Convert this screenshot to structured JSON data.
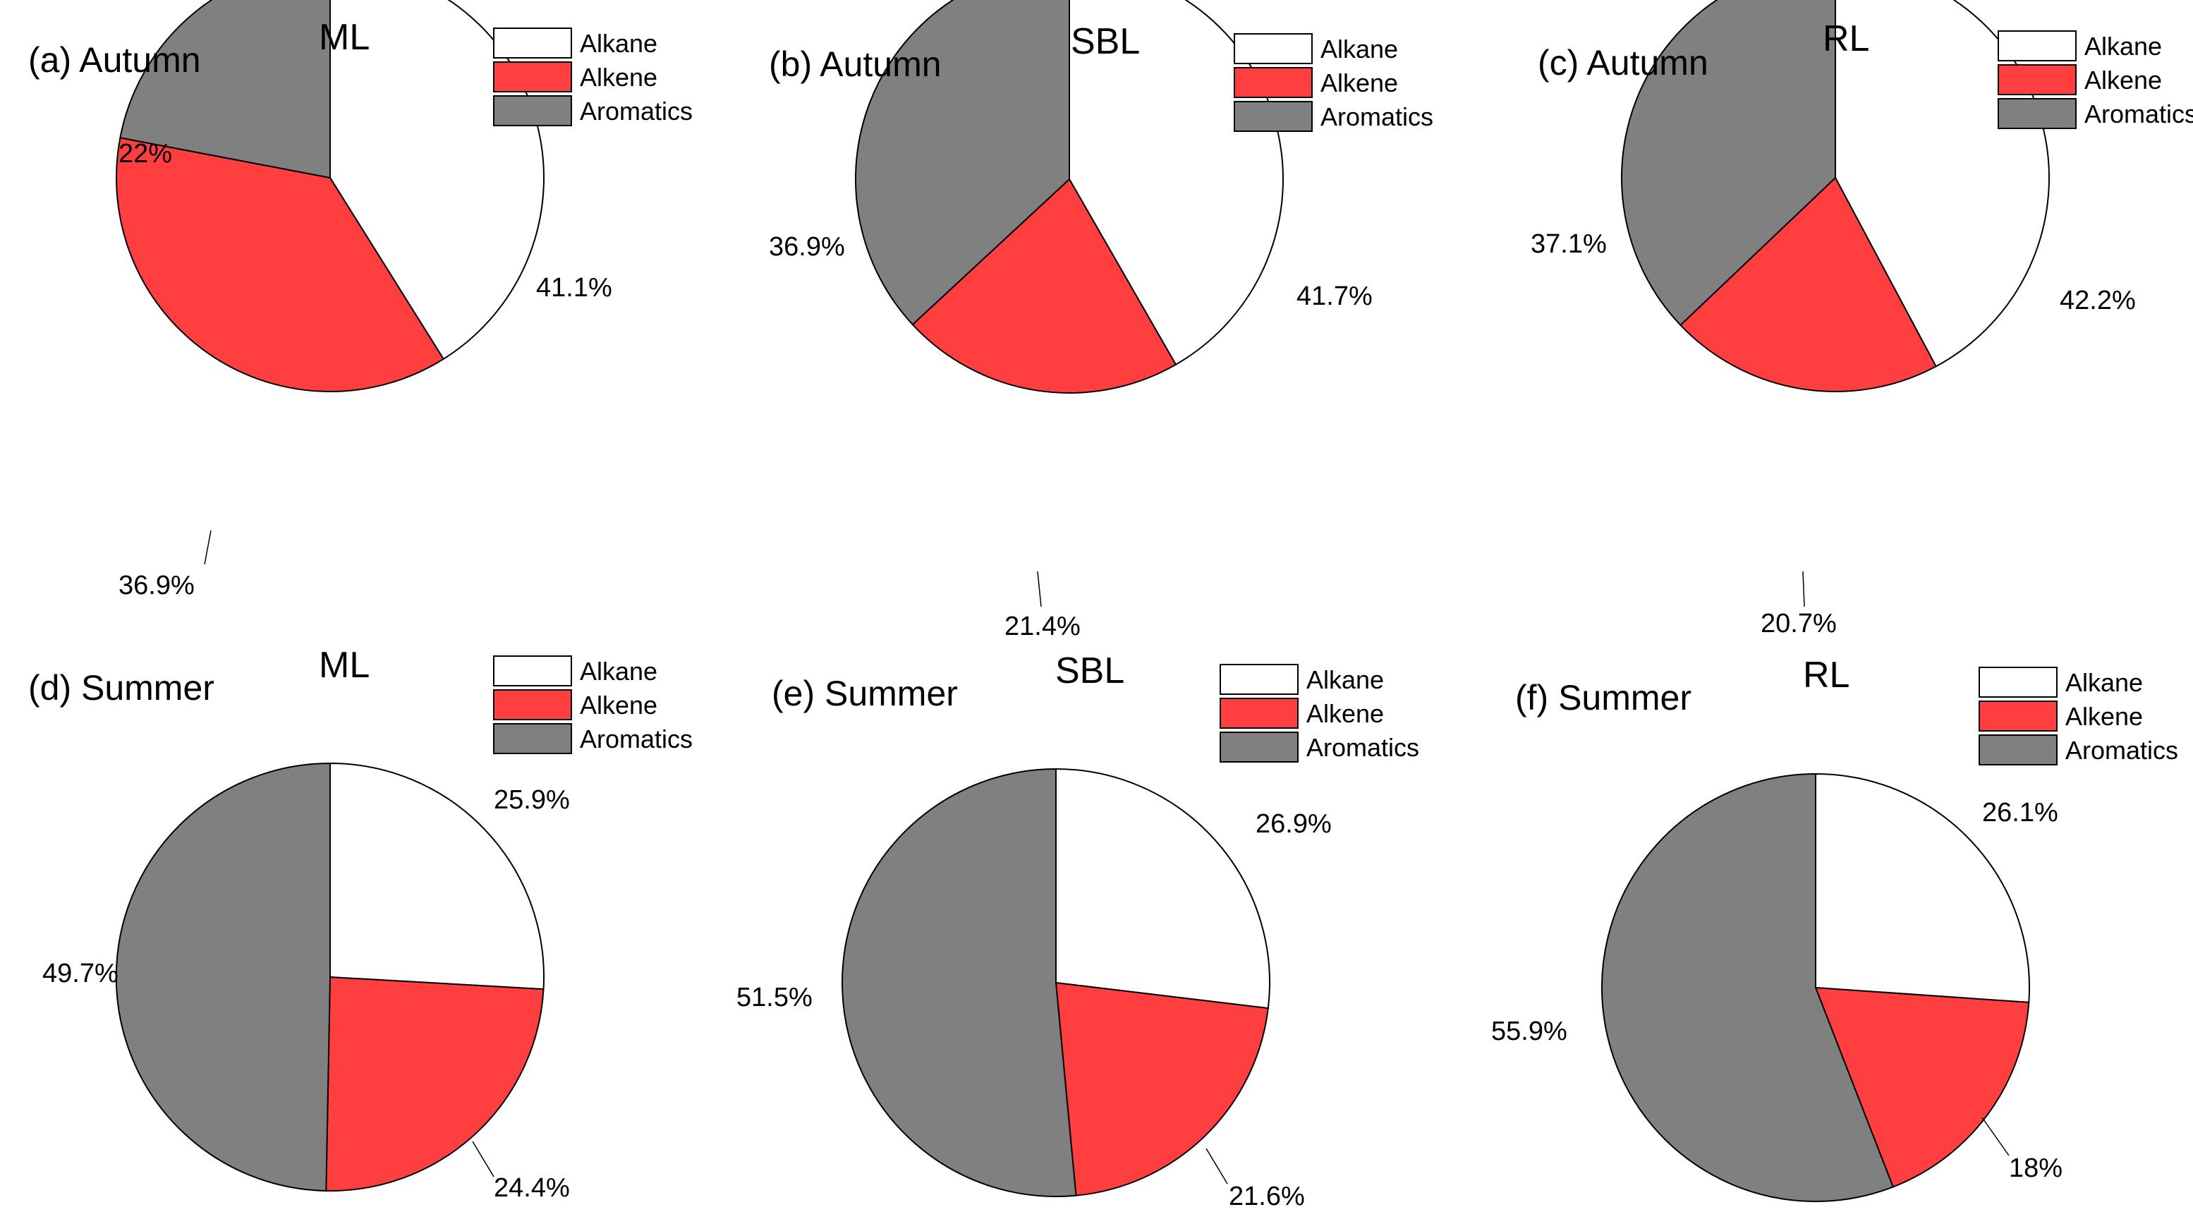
{
  "colors": {
    "Alkane": "#ffffff",
    "Alkene": "#ff3f3f",
    "Aromatics": "#808080"
  },
  "legend_labels": [
    "Alkane",
    "Alkene",
    "Aromatics"
  ],
  "chart_data": [
    {
      "type": "pie",
      "panel_label": "(a) Autumn",
      "title": "ML",
      "categories": [
        "Alkane",
        "Alkene",
        "Aromatics"
      ],
      "values": [
        41.1,
        36.9,
        22.0
      ],
      "value_labels": [
        "41.1%",
        "36.9%",
        "22%"
      ],
      "start_angle": "top",
      "direction": "clockwise",
      "legend_position": "top-right"
    },
    {
      "type": "pie",
      "panel_label": "(b) Autumn",
      "title": "SBL",
      "categories": [
        "Alkane",
        "Alkene",
        "Aromatics"
      ],
      "values": [
        41.7,
        21.4,
        36.9
      ],
      "value_labels": [
        "41.7%",
        "21.4%",
        "36.9%"
      ],
      "start_angle": "top",
      "direction": "clockwise",
      "legend_position": "top-right"
    },
    {
      "type": "pie",
      "panel_label": "(c) Autumn",
      "title": "RL",
      "categories": [
        "Alkane",
        "Alkene",
        "Aromatics"
      ],
      "values": [
        42.2,
        20.7,
        37.1
      ],
      "value_labels": [
        "42.2%",
        "20.7%",
        "37.1%"
      ],
      "start_angle": "top",
      "direction": "clockwise",
      "legend_position": "top-right"
    },
    {
      "type": "pie",
      "panel_label": "(d) Summer",
      "title": "ML",
      "categories": [
        "Alkane",
        "Alkene",
        "Aromatics"
      ],
      "values": [
        25.9,
        24.4,
        49.7
      ],
      "value_labels": [
        "25.9%",
        "24.4%",
        "49.7%"
      ],
      "start_angle": "top",
      "direction": "clockwise",
      "legend_position": "top-right"
    },
    {
      "type": "pie",
      "panel_label": "(e) Summer",
      "title": "SBL",
      "categories": [
        "Alkane",
        "Alkene",
        "Aromatics"
      ],
      "values": [
        26.9,
        21.6,
        51.5
      ],
      "value_labels": [
        "26.9%",
        "21.6%",
        "51.5%"
      ],
      "start_angle": "top",
      "direction": "clockwise",
      "legend_position": "top-right"
    },
    {
      "type": "pie",
      "panel_label": "(f) Summer",
      "title": "RL",
      "categories": [
        "Alkane",
        "Alkene",
        "Aromatics"
      ],
      "values": [
        26.1,
        18.0,
        55.9
      ],
      "value_labels": [
        "26.1%",
        "18%",
        "55.9%"
      ],
      "start_angle": "top",
      "direction": "clockwise",
      "legend_position": "top-right"
    }
  ]
}
